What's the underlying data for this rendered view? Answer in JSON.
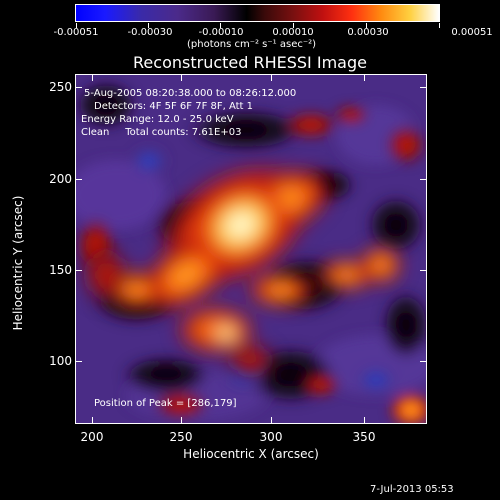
{
  "colorbar": {
    "ticks": [
      "-0.00051",
      "-0.00030",
      "-0.00010",
      "0.00010",
      "0.00030",
      "0.00051"
    ],
    "units": "(photons cm⁻² s⁻¹ asec⁻²)"
  },
  "title": "Reconstructed RHESSI Image",
  "annotations": {
    "time_range": "5-Aug-2005 08:20:38.000 to 08:26:12.000",
    "detectors": "Detectors: 4F 5F 6F 7F 8F, Att 1",
    "energy": "Energy Range: 12.0 - 25.0 keV",
    "clean": "Clean     Total counts: 7.61E+03",
    "peak": "Position of Peak = [286,179]"
  },
  "x_axis": {
    "label": "Heliocentric X (arcsec)",
    "ticks": [
      "200",
      "250",
      "300",
      "350"
    ]
  },
  "y_axis": {
    "label": "Heliocentric Y (arcsec)",
    "ticks": [
      "250",
      "200",
      "150",
      "100"
    ]
  },
  "footer": "7-Jul-2013 05:53"
}
